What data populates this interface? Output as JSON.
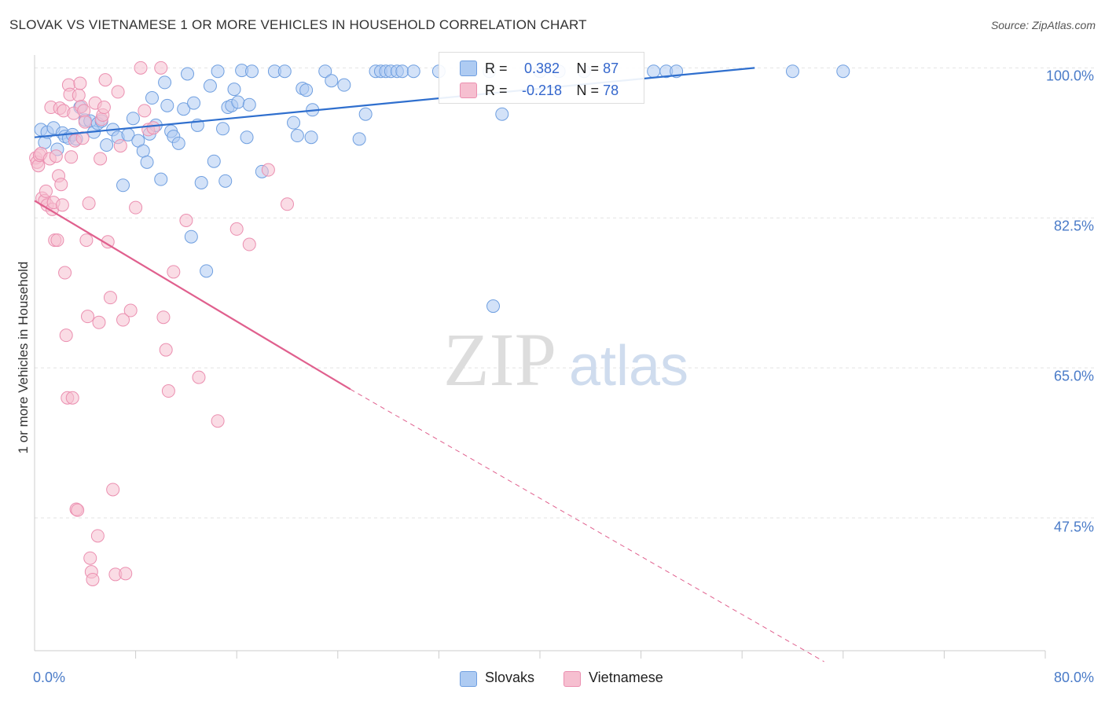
{
  "title": "SLOVAK VS VIETNAMESE 1 OR MORE VEHICLES IN HOUSEHOLD CORRELATION CHART",
  "source": "Source: ZipAtlas.com",
  "watermark": {
    "zip": "ZIP",
    "atlas": "atlas"
  },
  "stats": {
    "r_label": "R =",
    "n_label": "N =",
    "slovaks": {
      "r": "0.382",
      "n": "87"
    },
    "vietnamese": {
      "r": "-0.218",
      "n": "78"
    }
  },
  "legend": {
    "slovaks": "Slovaks",
    "vietnamese": "Vietnamese"
  },
  "colors": {
    "slovaks_fill": "#aecbf2",
    "slovaks_stroke": "#6f9fe0",
    "slovaks_line": "#2f6fce",
    "vietnamese_fill": "#f6bfd0",
    "vietnamese_stroke": "#eb8fb0",
    "vietnamese_line": "#e0608e",
    "tick_text": "#4a7bc8"
  },
  "axis_labels": {
    "y_ticks": [
      "100.0%",
      "82.5%",
      "65.0%",
      "47.5%"
    ],
    "x_ticks": [
      "0.0%",
      "80.0%"
    ]
  },
  "chart_data": {
    "type": "scatter",
    "title": "SLOVAK VS VIETNAMESE 1 OR MORE VEHICLES IN HOUSEHOLD CORRELATION CHART",
    "xlabel": "",
    "ylabel": "1 or more Vehicles in Household",
    "xlim": [
      0,
      80
    ],
    "ylim": [
      32,
      101.5
    ],
    "y_ticks": [
      100,
      82.5,
      65,
      47.5
    ],
    "x_ticks": [
      0,
      80
    ],
    "grid": true,
    "legend_position": "bottom-center",
    "series": [
      {
        "name": "Slovaks",
        "r": 0.382,
        "n": 87,
        "trend": {
          "x": [
            0,
            57
          ],
          "y": [
            91.9,
            100.0
          ],
          "style": "solid"
        },
        "points": [
          [
            0.5,
            92.8
          ],
          [
            0.8,
            91.3
          ],
          [
            1.0,
            92.5
          ],
          [
            1.5,
            93.0
          ],
          [
            1.8,
            90.5
          ],
          [
            2.2,
            92.4
          ],
          [
            2.4,
            92.0
          ],
          [
            2.7,
            91.8
          ],
          [
            3.0,
            92.2
          ],
          [
            3.3,
            91.7
          ],
          [
            3.6,
            95.4
          ],
          [
            4.0,
            93.9
          ],
          [
            4.4,
            93.8
          ],
          [
            4.7,
            92.5
          ],
          [
            5.0,
            93.5
          ],
          [
            5.3,
            93.8
          ],
          [
            5.7,
            91.0
          ],
          [
            6.2,
            92.8
          ],
          [
            6.6,
            91.9
          ],
          [
            7.0,
            86.3
          ],
          [
            7.4,
            92.2
          ],
          [
            7.8,
            94.1
          ],
          [
            8.2,
            91.5
          ],
          [
            8.6,
            90.3
          ],
          [
            8.9,
            89.0
          ],
          [
            9.1,
            92.3
          ],
          [
            9.3,
            96.5
          ],
          [
            9.6,
            93.3
          ],
          [
            10.0,
            87.0
          ],
          [
            10.3,
            98.3
          ],
          [
            10.5,
            95.6
          ],
          [
            10.8,
            92.6
          ],
          [
            11.0,
            92.0
          ],
          [
            11.4,
            91.2
          ],
          [
            11.8,
            95.2
          ],
          [
            12.1,
            99.3
          ],
          [
            12.4,
            80.3
          ],
          [
            12.6,
            95.9
          ],
          [
            12.9,
            93.3
          ],
          [
            13.2,
            86.6
          ],
          [
            13.6,
            76.3
          ],
          [
            13.9,
            97.9
          ],
          [
            14.2,
            89.1
          ],
          [
            14.5,
            99.6
          ],
          [
            14.9,
            92.9
          ],
          [
            15.1,
            86.8
          ],
          [
            15.3,
            95.4
          ],
          [
            15.6,
            95.6
          ],
          [
            15.8,
            97.5
          ],
          [
            16.1,
            96.0
          ],
          [
            16.4,
            99.7
          ],
          [
            16.8,
            91.9
          ],
          [
            17.0,
            95.7
          ],
          [
            17.2,
            99.6
          ],
          [
            18.0,
            87.9
          ],
          [
            19.0,
            99.6
          ],
          [
            19.8,
            99.6
          ],
          [
            20.5,
            93.6
          ],
          [
            20.8,
            92.1
          ],
          [
            21.2,
            97.6
          ],
          [
            21.5,
            97.4
          ],
          [
            21.9,
            91.9
          ],
          [
            22.0,
            95.1
          ],
          [
            23.0,
            99.6
          ],
          [
            23.5,
            98.5
          ],
          [
            24.5,
            98.0
          ],
          [
            25.7,
            91.7
          ],
          [
            26.2,
            94.6
          ],
          [
            27.0,
            99.6
          ],
          [
            27.4,
            99.6
          ],
          [
            27.8,
            99.6
          ],
          [
            28.2,
            99.6
          ],
          [
            28.7,
            99.6
          ],
          [
            29.1,
            99.6
          ],
          [
            30.0,
            99.6
          ],
          [
            32.0,
            99.6
          ],
          [
            36.0,
            99.6
          ],
          [
            36.3,
            72.2
          ],
          [
            37.0,
            94.6
          ],
          [
            40.0,
            99.6
          ],
          [
            41.5,
            99.6
          ],
          [
            43.5,
            99.6
          ],
          [
            49.0,
            99.6
          ],
          [
            50.0,
            99.6
          ],
          [
            50.8,
            99.6
          ],
          [
            60.0,
            99.6
          ],
          [
            64.0,
            99.6
          ]
        ]
      },
      {
        "name": "Vietnamese",
        "r": -0.218,
        "n": 78,
        "trend": {
          "x": [
            0,
            25
          ],
          "y": [
            84.5,
            62.5
          ],
          "style": "solid",
          "dashed_extension": {
            "x": [
              25,
              62.5
            ],
            "y": [
              62.5,
              30.0
            ]
          }
        },
        "points": [
          [
            0.1,
            89.5
          ],
          [
            0.2,
            89.0
          ],
          [
            0.3,
            88.6
          ],
          [
            0.4,
            89.8
          ],
          [
            0.5,
            90.0
          ],
          [
            0.6,
            84.8
          ],
          [
            0.8,
            84.5
          ],
          [
            0.9,
            85.6
          ],
          [
            1.0,
            84.0
          ],
          [
            1.2,
            89.4
          ],
          [
            1.3,
            95.4
          ],
          [
            1.4,
            83.5
          ],
          [
            1.5,
            84.3
          ],
          [
            1.6,
            79.9
          ],
          [
            1.7,
            89.7
          ],
          [
            1.8,
            79.9
          ],
          [
            1.9,
            87.4
          ],
          [
            2.0,
            95.3
          ],
          [
            2.1,
            86.4
          ],
          [
            2.2,
            84.0
          ],
          [
            2.3,
            95.0
          ],
          [
            2.4,
            76.1
          ],
          [
            2.5,
            68.8
          ],
          [
            2.6,
            61.5
          ],
          [
            2.7,
            98.0
          ],
          [
            2.8,
            96.9
          ],
          [
            2.9,
            89.6
          ],
          [
            3.0,
            61.5
          ],
          [
            3.1,
            94.7
          ],
          [
            3.2,
            91.5
          ],
          [
            3.3,
            48.5
          ],
          [
            3.4,
            48.4
          ],
          [
            3.5,
            96.8
          ],
          [
            3.6,
            98.2
          ],
          [
            3.7,
            95.5
          ],
          [
            3.8,
            91.8
          ],
          [
            3.9,
            95.0
          ],
          [
            4.0,
            93.7
          ],
          [
            4.1,
            79.9
          ],
          [
            4.2,
            71.0
          ],
          [
            4.3,
            84.2
          ],
          [
            4.4,
            42.8
          ],
          [
            4.5,
            41.2
          ],
          [
            4.6,
            40.3
          ],
          [
            4.8,
            95.9
          ],
          [
            5.0,
            45.4
          ],
          [
            5.1,
            70.3
          ],
          [
            5.2,
            89.4
          ],
          [
            5.3,
            94.0
          ],
          [
            5.4,
            94.5
          ],
          [
            5.5,
            95.4
          ],
          [
            5.6,
            98.6
          ],
          [
            5.8,
            79.7
          ],
          [
            6.0,
            73.2
          ],
          [
            6.2,
            50.8
          ],
          [
            6.4,
            40.9
          ],
          [
            6.6,
            97.2
          ],
          [
            6.8,
            90.9
          ],
          [
            7.0,
            70.6
          ],
          [
            7.2,
            41.0
          ],
          [
            7.6,
            71.7
          ],
          [
            8.0,
            83.7
          ],
          [
            8.4,
            100.0
          ],
          [
            8.7,
            95.0
          ],
          [
            9.0,
            92.8
          ],
          [
            9.4,
            93.0
          ],
          [
            10.0,
            100.0
          ],
          [
            10.2,
            70.9
          ],
          [
            10.4,
            67.1
          ],
          [
            10.6,
            62.3
          ],
          [
            11.0,
            76.2
          ],
          [
            12.0,
            82.2
          ],
          [
            13.0,
            63.9
          ],
          [
            14.5,
            58.8
          ],
          [
            16.0,
            81.2
          ],
          [
            17.0,
            79.4
          ],
          [
            18.5,
            88.1
          ],
          [
            20.0,
            84.1
          ]
        ]
      }
    ]
  }
}
